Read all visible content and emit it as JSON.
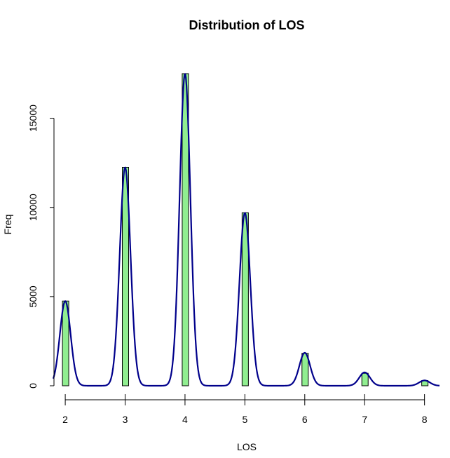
{
  "chart_data": {
    "type": "bar",
    "title": "Distribution of LOS",
    "xlabel": "LOS",
    "ylabel": "Freq",
    "x_ticks": [
      2,
      3,
      4,
      5,
      6,
      7,
      8
    ],
    "y_ticks": [
      0,
      5000,
      10000,
      15000
    ],
    "xlim": [
      1.8,
      8.25
    ],
    "ylim": [
      0,
      17500
    ],
    "bars": [
      {
        "x": 2,
        "value": 4750
      },
      {
        "x": 3,
        "value": 12250
      },
      {
        "x": 4,
        "value": 17500
      },
      {
        "x": 5,
        "value": 9700
      },
      {
        "x": 6,
        "value": 1820
      },
      {
        "x": 7,
        "value": 700
      },
      {
        "x": 8,
        "value": 290
      }
    ],
    "density_peaks": [
      {
        "x": 2.0,
        "value": 4750
      },
      {
        "x": 3.0,
        "value": 12250
      },
      {
        "x": 4.0,
        "value": 17500
      },
      {
        "x": 5.0,
        "value": 9700
      },
      {
        "x": 6.0,
        "value": 1850
      },
      {
        "x": 7.0,
        "value": 750
      },
      {
        "x": 8.0,
        "value": 300
      }
    ],
    "density_sd": 0.09,
    "grid": false,
    "legend": "none"
  },
  "colors": {
    "bar_fill": "#90ee90",
    "bar_stroke": "#000000",
    "density_line": "#00008b"
  }
}
